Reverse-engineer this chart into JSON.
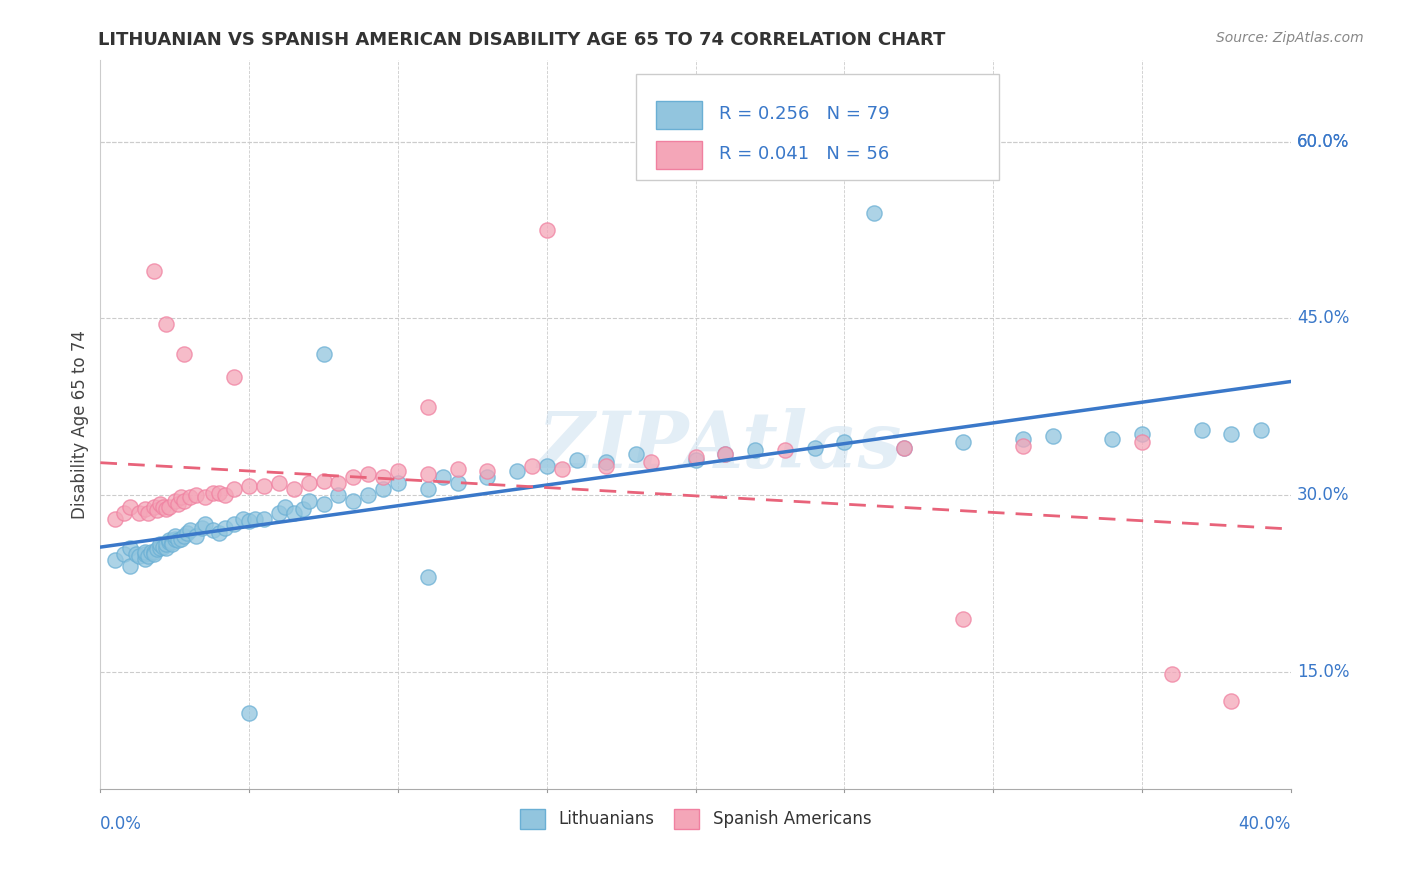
{
  "title": "LITHUANIAN VS SPANISH AMERICAN DISABILITY AGE 65 TO 74 CORRELATION CHART",
  "source": "Source: ZipAtlas.com",
  "ylabel": "Disability Age 65 to 74",
  "ytick_vals": [
    0.15,
    0.3,
    0.45,
    0.6
  ],
  "ytick_labels": [
    "15.0%",
    "30.0%",
    "45.0%",
    "60.0%"
  ],
  "xrange": [
    0.0,
    0.4
  ],
  "yrange": [
    0.05,
    0.67
  ],
  "R_blue": 0.256,
  "N_blue": 79,
  "R_pink": 0.041,
  "N_pink": 56,
  "color_blue": "#92c5de",
  "color_pink": "#f4a6b8",
  "color_blue_line": "#3a78c9",
  "color_pink_line": "#e8637a",
  "color_blue_edge": "#6aafd4",
  "color_pink_edge": "#f080a0",
  "watermark": "ZIPAtlas",
  "legend_label_blue": "Lithuanians",
  "legend_label_pink": "Spanish Americans",
  "blue_x": [
    0.005,
    0.008,
    0.01,
    0.01,
    0.012,
    0.013,
    0.015,
    0.015,
    0.015,
    0.016,
    0.017,
    0.018,
    0.018,
    0.019,
    0.02,
    0.02,
    0.021,
    0.022,
    0.022,
    0.023,
    0.023,
    0.024,
    0.024,
    0.025,
    0.025,
    0.026,
    0.027,
    0.028,
    0.029,
    0.03,
    0.032,
    0.034,
    0.035,
    0.038,
    0.04,
    0.042,
    0.045,
    0.048,
    0.05,
    0.052,
    0.055,
    0.06,
    0.062,
    0.065,
    0.068,
    0.07,
    0.075,
    0.08,
    0.085,
    0.09,
    0.095,
    0.1,
    0.11,
    0.115,
    0.12,
    0.13,
    0.14,
    0.15,
    0.16,
    0.17,
    0.18,
    0.2,
    0.21,
    0.22,
    0.24,
    0.25,
    0.27,
    0.29,
    0.31,
    0.32,
    0.34,
    0.35,
    0.37,
    0.38,
    0.39,
    0.26,
    0.05,
    0.075,
    0.11
  ],
  "blue_y": [
    0.245,
    0.25,
    0.24,
    0.255,
    0.25,
    0.248,
    0.246,
    0.25,
    0.252,
    0.248,
    0.252,
    0.252,
    0.25,
    0.254,
    0.255,
    0.258,
    0.256,
    0.255,
    0.258,
    0.26,
    0.262,
    0.26,
    0.258,
    0.263,
    0.265,
    0.262,
    0.263,
    0.265,
    0.268,
    0.27,
    0.265,
    0.272,
    0.275,
    0.27,
    0.268,
    0.272,
    0.275,
    0.28,
    0.278,
    0.28,
    0.28,
    0.285,
    0.29,
    0.285,
    0.288,
    0.295,
    0.292,
    0.3,
    0.295,
    0.3,
    0.305,
    0.31,
    0.305,
    0.315,
    0.31,
    0.315,
    0.32,
    0.325,
    0.33,
    0.328,
    0.335,
    0.33,
    0.335,
    0.338,
    0.34,
    0.345,
    0.34,
    0.345,
    0.348,
    0.35,
    0.348,
    0.352,
    0.355,
    0.352,
    0.355,
    0.54,
    0.115,
    0.42,
    0.23
  ],
  "pink_x": [
    0.005,
    0.008,
    0.01,
    0.013,
    0.015,
    0.016,
    0.018,
    0.019,
    0.02,
    0.021,
    0.022,
    0.023,
    0.025,
    0.026,
    0.027,
    0.028,
    0.03,
    0.032,
    0.035,
    0.038,
    0.04,
    0.042,
    0.045,
    0.05,
    0.055,
    0.06,
    0.065,
    0.07,
    0.075,
    0.08,
    0.085,
    0.09,
    0.095,
    0.1,
    0.11,
    0.12,
    0.13,
    0.145,
    0.155,
    0.17,
    0.185,
    0.2,
    0.21,
    0.23,
    0.27,
    0.31,
    0.35,
    0.018,
    0.022,
    0.028,
    0.045,
    0.11,
    0.15,
    0.29,
    0.36,
    0.38
  ],
  "pink_y": [
    0.28,
    0.285,
    0.29,
    0.285,
    0.288,
    0.285,
    0.29,
    0.287,
    0.292,
    0.29,
    0.288,
    0.29,
    0.295,
    0.292,
    0.298,
    0.295,
    0.298,
    0.3,
    0.298,
    0.302,
    0.302,
    0.3,
    0.305,
    0.308,
    0.308,
    0.31,
    0.305,
    0.31,
    0.312,
    0.31,
    0.315,
    0.318,
    0.315,
    0.32,
    0.318,
    0.322,
    0.32,
    0.325,
    0.322,
    0.325,
    0.328,
    0.332,
    0.335,
    0.338,
    0.34,
    0.342,
    0.345,
    0.49,
    0.445,
    0.42,
    0.4,
    0.375,
    0.525,
    0.195,
    0.148,
    0.125
  ]
}
